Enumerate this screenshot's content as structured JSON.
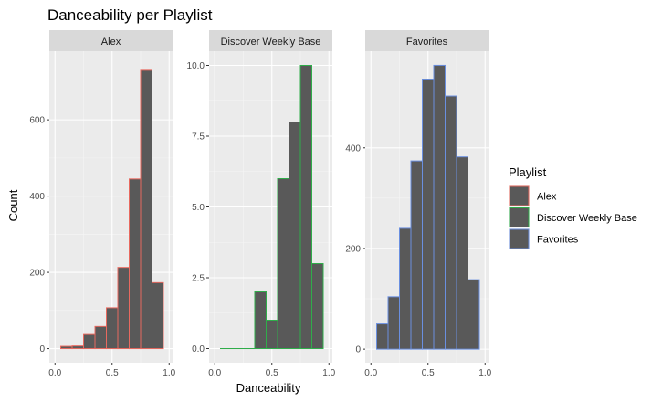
{
  "chart_data": {
    "type": "bar",
    "title": "Danceability per Playlist",
    "xlabel": "Danceability",
    "ylabel": "Count",
    "bar_fill": "#595959",
    "panel_bg": "#ebebeb",
    "strip_bg": "#d9d9d9",
    "grid": true,
    "scales": "free_y",
    "legend": {
      "title": "Playlist",
      "position": "right"
    },
    "bin_width": 0.1,
    "xlim": [
      -0.05,
      1.03
    ],
    "x_ticks": [
      "0.0",
      "0.5",
      "1.0"
    ],
    "x_tick_values": [
      0,
      0.5,
      1.0
    ],
    "panels": [
      {
        "name": "Alex",
        "color": "#e8695f",
        "bins": [
          {
            "x0": 0.05,
            "x1": 0.15,
            "count": 6
          },
          {
            "x0": 0.15,
            "x1": 0.25,
            "count": 7
          },
          {
            "x0": 0.25,
            "x1": 0.35,
            "count": 37
          },
          {
            "x0": 0.35,
            "x1": 0.45,
            "count": 58
          },
          {
            "x0": 0.45,
            "x1": 0.55,
            "count": 107
          },
          {
            "x0": 0.55,
            "x1": 0.65,
            "count": 213
          },
          {
            "x0": 0.65,
            "x1": 0.75,
            "count": 445
          },
          {
            "x0": 0.75,
            "x1": 0.85,
            "count": 730
          },
          {
            "x0": 0.85,
            "x1": 0.95,
            "count": 173
          }
        ],
        "ylim": [
          -37,
          780
        ],
        "y_ticks": [
          "0",
          "200",
          "400",
          "600"
        ],
        "y_tick_values": [
          0,
          200,
          400,
          600
        ]
      },
      {
        "name": "Discover Weekly Base",
        "color": "#2fad4a",
        "bins": [
          {
            "x0": 0.05,
            "x1": 0.15,
            "count": 0
          },
          {
            "x0": 0.15,
            "x1": 0.25,
            "count": 0
          },
          {
            "x0": 0.25,
            "x1": 0.35,
            "count": 0
          },
          {
            "x0": 0.35,
            "x1": 0.45,
            "count": 2
          },
          {
            "x0": 0.45,
            "x1": 0.55,
            "count": 1
          },
          {
            "x0": 0.55,
            "x1": 0.65,
            "count": 6
          },
          {
            "x0": 0.65,
            "x1": 0.75,
            "count": 8
          },
          {
            "x0": 0.75,
            "x1": 0.85,
            "count": 10
          },
          {
            "x0": 0.85,
            "x1": 0.95,
            "count": 3
          }
        ],
        "ylim": [
          -0.5,
          10.5
        ],
        "y_ticks": [
          "0.0",
          "2.5",
          "5.0",
          "7.5",
          "10.0"
        ],
        "y_tick_values": [
          0,
          2.5,
          5,
          7.5,
          10
        ]
      },
      {
        "name": "Favorites",
        "color": "#6a8fe0",
        "bins": [
          {
            "x0": 0.05,
            "x1": 0.15,
            "count": 50
          },
          {
            "x0": 0.15,
            "x1": 0.25,
            "count": 104
          },
          {
            "x0": 0.25,
            "x1": 0.35,
            "count": 240
          },
          {
            "x0": 0.35,
            "x1": 0.45,
            "count": 374
          },
          {
            "x0": 0.45,
            "x1": 0.55,
            "count": 535
          },
          {
            "x0": 0.55,
            "x1": 0.65,
            "count": 564
          },
          {
            "x0": 0.65,
            "x1": 0.75,
            "count": 503
          },
          {
            "x0": 0.75,
            "x1": 0.85,
            "count": 382
          },
          {
            "x0": 0.85,
            "x1": 0.95,
            "count": 138
          }
        ],
        "ylim": [
          -27,
          592
        ],
        "y_ticks": [
          "0",
          "200",
          "400"
        ],
        "y_tick_values": [
          0,
          200,
          400
        ]
      }
    ]
  }
}
